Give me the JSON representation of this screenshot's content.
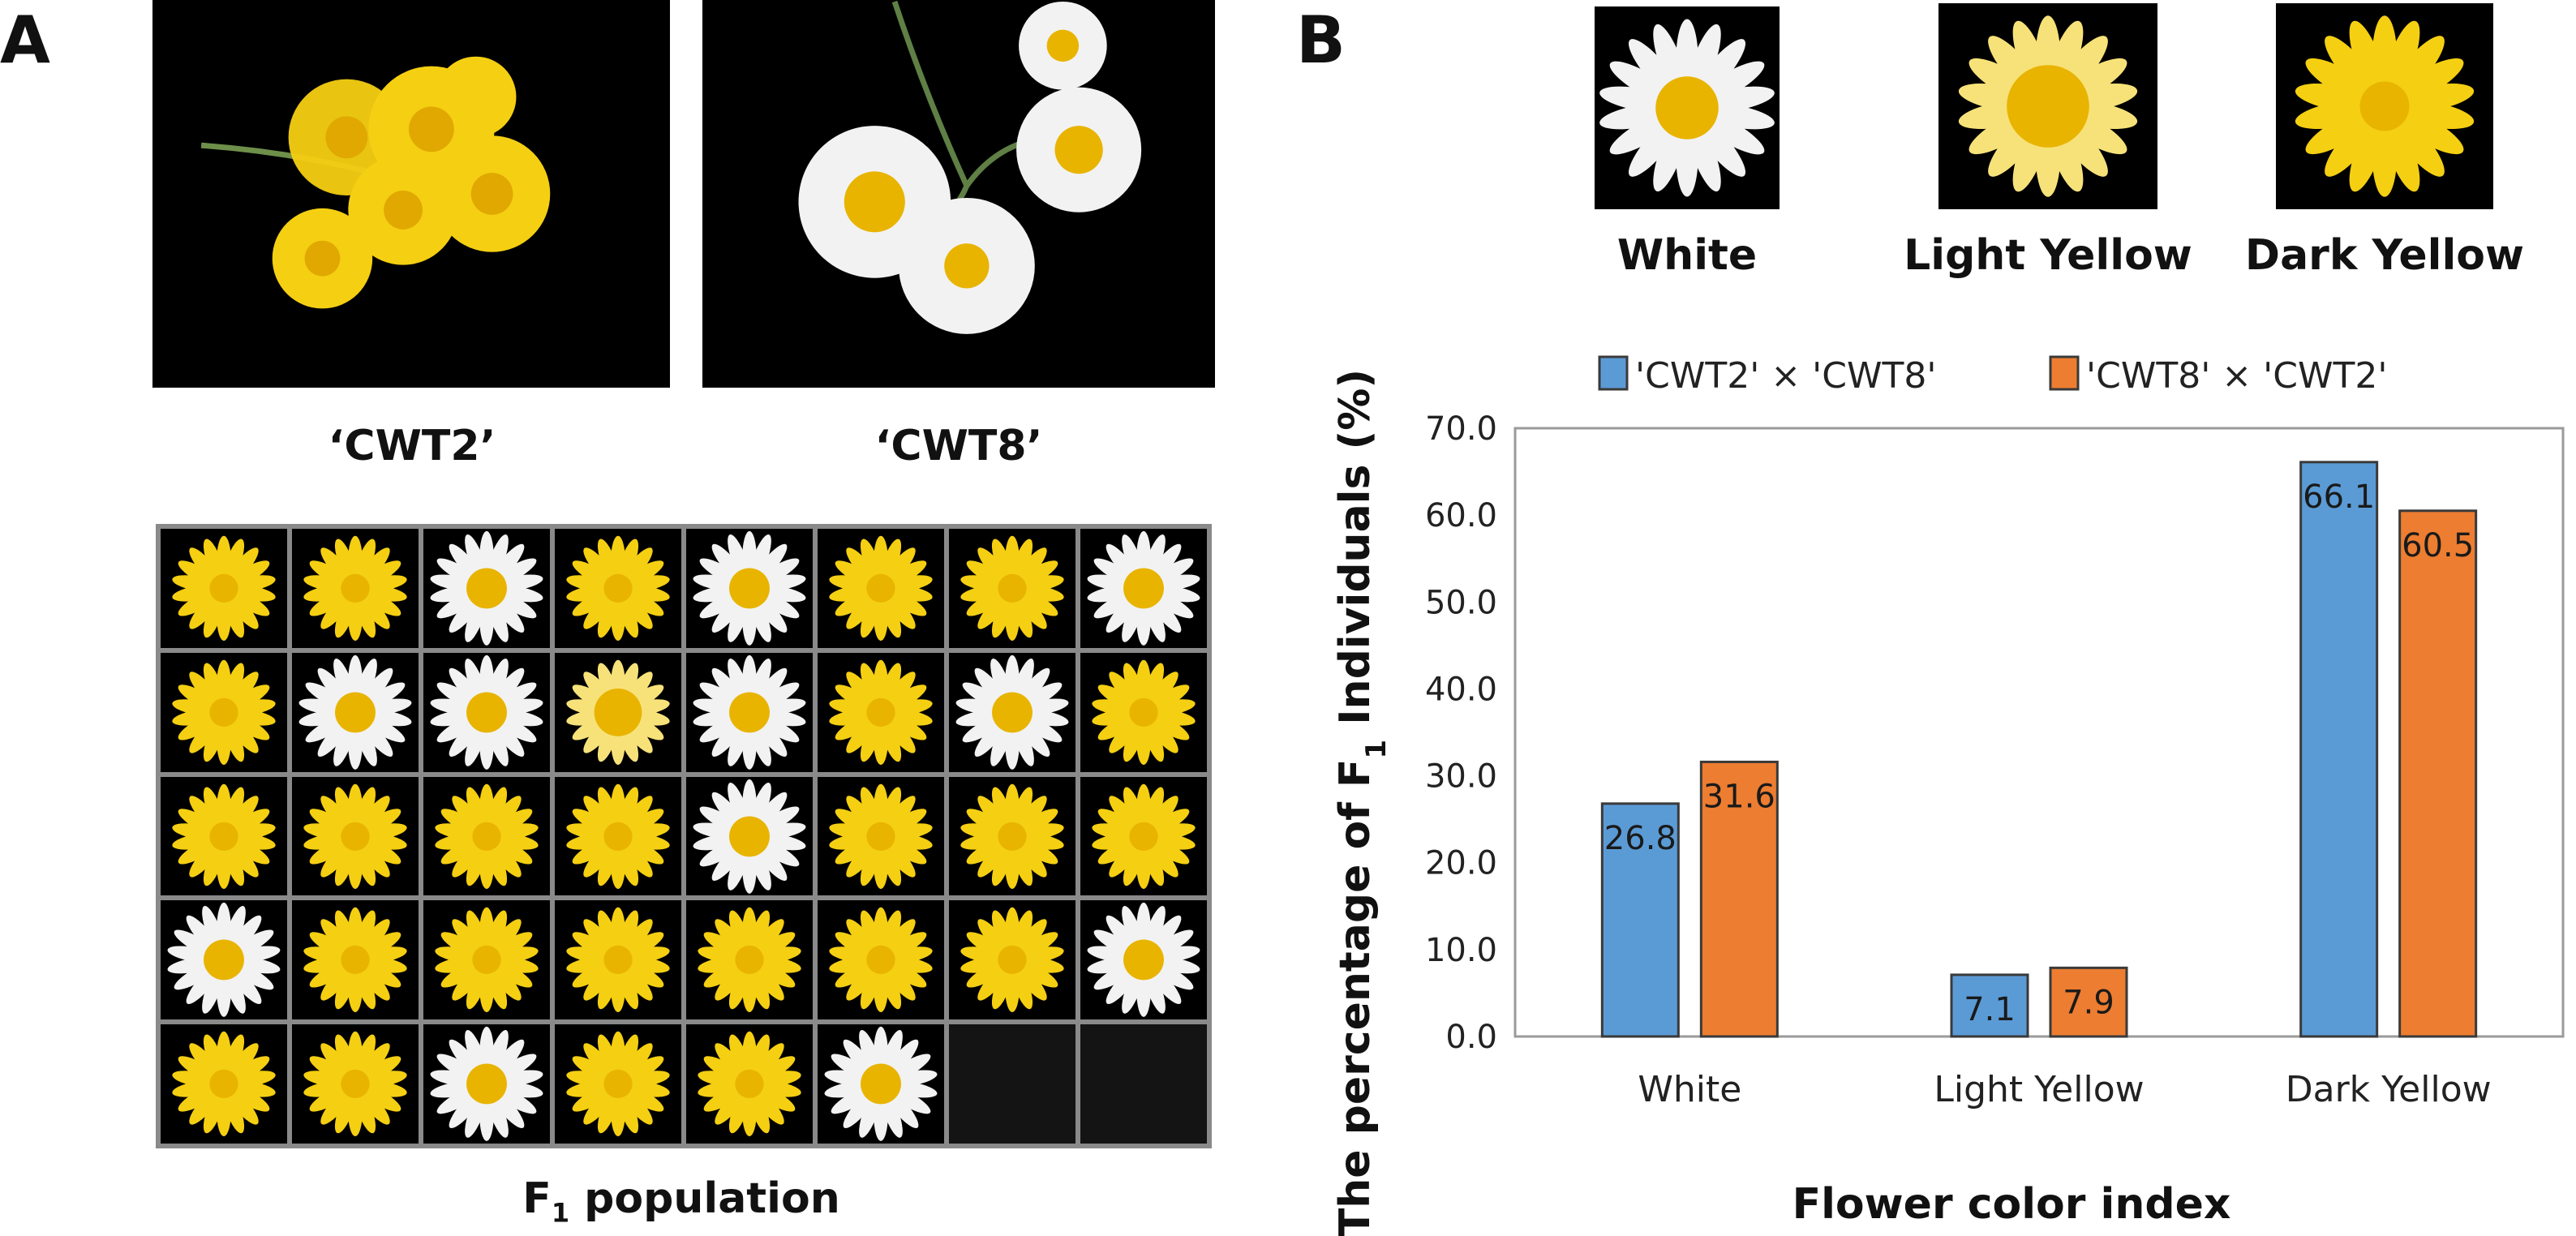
{
  "panel_a": {
    "letter": "A",
    "parent_left": "‘CWT2’",
    "parent_right": "‘CWT8’",
    "grid_caption_main": "F",
    "grid_caption_sub": "1",
    "grid_caption_rest": " population",
    "grid_cells": [
      "dark",
      "dark",
      "white",
      "dark",
      "white",
      "dark",
      "dark",
      "white",
      "dark",
      "white",
      "white",
      "light",
      "white",
      "dark",
      "white",
      "dark",
      "dark",
      "dark",
      "dark",
      "dark",
      "white",
      "dark",
      "dark",
      "dark",
      "white",
      "dark",
      "dark",
      "dark",
      "dark",
      "dark",
      "dark",
      "white",
      "dark",
      "dark",
      "white",
      "dark",
      "dark",
      "white",
      "empty",
      "empty"
    ]
  },
  "panel_b": {
    "letter": "B",
    "swatches": [
      {
        "label": "White",
        "kind": "white"
      },
      {
        "label": "Light Yellow",
        "kind": "light"
      },
      {
        "label": "Dark Yellow",
        "kind": "dark"
      }
    ]
  },
  "colors": {
    "series_1": "#5b9bd5",
    "series_2": "#ed7d31",
    "petal_white": "#f2f2f2",
    "petal_light": "#f7e27a",
    "petal_dark": "#f5cf12",
    "center": "#e8b400"
  },
  "chart_data": {
    "type": "bar",
    "categories": [
      "White",
      "Light Yellow",
      "Dark Yellow"
    ],
    "series": [
      {
        "name": "'CWT2' × 'CWT8'",
        "values": [
          26.8,
          7.1,
          66.1
        ]
      },
      {
        "name": "'CWT8' × 'CWT2'",
        "values": [
          31.6,
          7.9,
          60.5
        ]
      }
    ],
    "value_labels": [
      [
        "26.8",
        "7.1",
        "66.1"
      ],
      [
        "31.6",
        "7.9",
        "60.5"
      ]
    ],
    "xlabel": "Flower color index",
    "ylabel_main": "The percentage of F",
    "ylabel_sub": "1",
    "ylabel_rest": " Individuals (%)",
    "ylim": [
      0,
      70
    ],
    "yticks": [
      "0.0",
      "10.0",
      "20.0",
      "30.0",
      "40.0",
      "50.0",
      "60.0",
      "70.0"
    ],
    "legend_position": "top",
    "grid": false
  }
}
